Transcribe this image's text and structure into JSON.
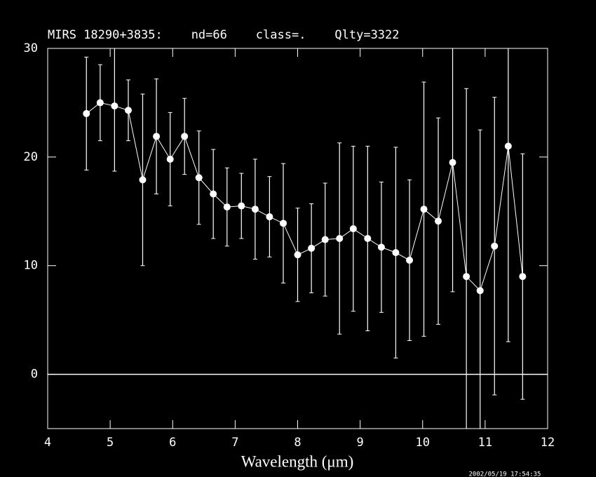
{
  "chart_data": {
    "type": "errorline",
    "title": "MIRS 18290+3835:    nd=66    class=.    Qlty=3322",
    "x_label": "Wavelength (μm)",
    "timestamp": "2002/05/19 17:54:35",
    "color": "#ffffff",
    "hline": 0,
    "x": [
      4.62,
      4.84,
      5.07,
      5.29,
      5.52,
      5.74,
      5.96,
      6.19,
      6.42,
      6.65,
      6.87,
      7.1,
      7.32,
      7.55,
      7.77,
      8.0,
      8.22,
      8.44,
      8.67,
      8.89,
      9.12,
      9.34,
      9.57,
      9.79,
      10.02,
      10.25,
      10.48,
      10.7,
      10.92,
      11.15,
      11.37,
      11.6
    ],
    "values": [
      24.0,
      25.0,
      24.7,
      24.3,
      17.9,
      21.9,
      19.8,
      21.9,
      18.1,
      16.6,
      15.4,
      15.5,
      15.2,
      14.5,
      13.9,
      11.0,
      11.6,
      12.4,
      12.5,
      13.4,
      12.5,
      11.7,
      11.2,
      10.5,
      15.2,
      14.1,
      19.5,
      9.0,
      7.7,
      11.8,
      21.0,
      9.0
    ],
    "errors": [
      5.2,
      3.5,
      6.0,
      2.8,
      7.9,
      5.3,
      4.3,
      3.5,
      4.3,
      4.1,
      3.6,
      3.0,
      4.6,
      3.7,
      5.5,
      4.3,
      4.1,
      5.2,
      8.8,
      7.6,
      8.5,
      6.0,
      9.7,
      7.4,
      11.7,
      9.5,
      11.9,
      17.3,
      14.8,
      13.7,
      18.0,
      11.3
    ],
    "xlim": [
      4,
      12
    ],
    "ylim": [
      -5,
      30
    ],
    "xticks": [
      4,
      5,
      6,
      7,
      8,
      9,
      10,
      11,
      12
    ],
    "yticks": [
      0,
      10,
      20,
      30
    ]
  }
}
